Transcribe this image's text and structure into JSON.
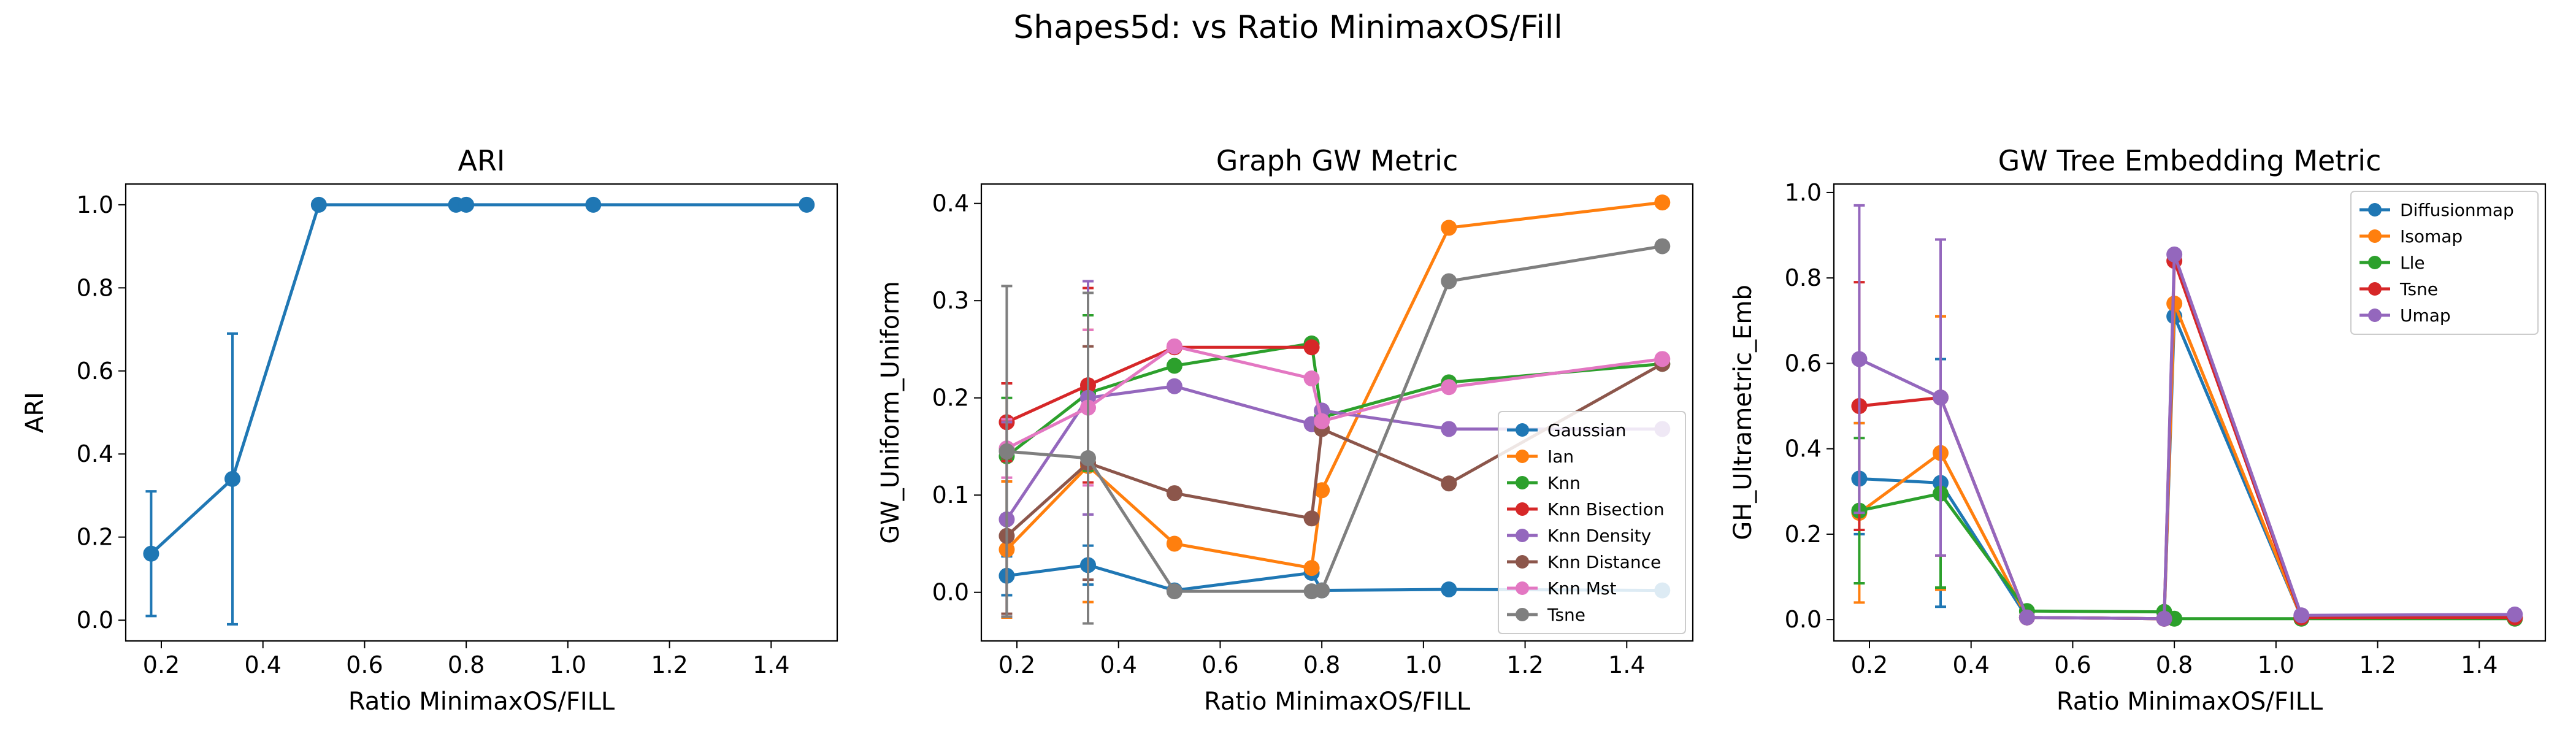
{
  "suptitle": "Shapes5d: vs Ratio MinimaxOS/Fill",
  "chart_data": [
    {
      "type": "line",
      "title": "ARI",
      "xlabel": "Ratio MinimaxOS/FILL",
      "ylabel": "ARI",
      "xlim": [
        0.13,
        1.53
      ],
      "ylim": [
        -0.05,
        1.05
      ],
      "xticks": [
        "0.2",
        "0.4",
        "0.6",
        "0.8",
        "1.0",
        "1.2",
        "1.4"
      ],
      "yticks": [
        "0.0",
        "0.2",
        "0.4",
        "0.6",
        "0.8",
        "1.0"
      ],
      "legend": "none",
      "series": [
        {
          "color": "#1f77b4",
          "x": [
            0.18,
            0.34,
            0.51,
            0.78,
            0.8,
            1.05,
            1.47
          ],
          "y": [
            0.16,
            0.34,
            1.0,
            1.0,
            1.0,
            1.0,
            1.0
          ],
          "err": [
            0.15,
            0.35,
            0,
            0,
            0,
            0,
            0
          ]
        }
      ]
    },
    {
      "type": "line",
      "title": "Graph GW Metric",
      "xlabel": "Ratio MinimaxOS/FILL",
      "ylabel": "GW_Uniform_Uniform",
      "xlim": [
        0.13,
        1.53
      ],
      "ylim": [
        -0.05,
        0.42
      ],
      "xticks": [
        "0.2",
        "0.4",
        "0.6",
        "0.8",
        "1.0",
        "1.2",
        "1.4"
      ],
      "yticks": [
        "0.0",
        "0.1",
        "0.2",
        "0.3",
        "0.4"
      ],
      "legend": "lower-right",
      "series": [
        {
          "name": "Gaussian",
          "color": "#1f77b4",
          "x": [
            0.18,
            0.34,
            0.51,
            0.78,
            0.8,
            1.05,
            1.47
          ],
          "y": [
            0.017,
            0.028,
            0.002,
            0.02,
            0.002,
            0.003,
            0.002
          ],
          "err": [
            0.02,
            0.02,
            0,
            0,
            0,
            0,
            0
          ]
        },
        {
          "name": "Ian",
          "color": "#ff7f0e",
          "x": [
            0.18,
            0.34,
            0.51,
            0.78,
            0.8,
            1.05,
            1.47
          ],
          "y": [
            0.044,
            0.13,
            0.05,
            0.025,
            0.105,
            0.375,
            0.401
          ],
          "err": [
            0.07,
            0.14,
            0,
            0,
            0,
            0,
            0
          ]
        },
        {
          "name": "Knn",
          "color": "#2ca02c",
          "x": [
            0.18,
            0.34,
            0.51,
            0.78,
            0.8,
            1.05,
            1.47
          ],
          "y": [
            0.14,
            0.205,
            0.233,
            0.256,
            0.18,
            0.216,
            0.235
          ],
          "err": [
            0.06,
            0.08,
            0,
            0,
            0,
            0,
            0
          ]
        },
        {
          "name": "Knn Bisection",
          "color": "#d62728",
          "x": [
            0.18,
            0.34,
            0.51,
            0.78
          ],
          "y": [
            0.175,
            0.213,
            0.252,
            0.252
          ],
          "err": [
            0.04,
            0.1,
            0,
            0
          ]
        },
        {
          "name": "Knn Density",
          "color": "#9467bd",
          "x": [
            0.18,
            0.34,
            0.51,
            0.78,
            0.8,
            1.05,
            1.47
          ],
          "y": [
            0.075,
            0.2,
            0.212,
            0.173,
            0.187,
            0.168,
            0.168
          ],
          "err": [
            0.1,
            0.12,
            0,
            0,
            0,
            0,
            0
          ]
        },
        {
          "name": "Knn Distance",
          "color": "#8c564b",
          "x": [
            0.18,
            0.34,
            0.51,
            0.78,
            0.8,
            1.05,
            1.47
          ],
          "y": [
            0.058,
            0.133,
            0.102,
            0.076,
            0.168,
            0.112,
            0.235
          ],
          "err": [
            0.08,
            0.12,
            0,
            0,
            0,
            0,
            0
          ]
        },
        {
          "name": "Knn Mst",
          "color": "#e377c2",
          "x": [
            0.18,
            0.34,
            0.51,
            0.78,
            0.8,
            1.05,
            1.47
          ],
          "y": [
            0.148,
            0.19,
            0.253,
            0.22,
            0.176,
            0.211,
            0.24
          ],
          "err": [
            0.03,
            0.08,
            0,
            0,
            0,
            0,
            0
          ]
        },
        {
          "name": "Tsne",
          "color": "#7f7f7f",
          "x": [
            0.18,
            0.34,
            0.51,
            0.78,
            0.8,
            1.05,
            1.47
          ],
          "y": [
            0.145,
            0.138,
            0.001,
            0.001,
            0.002,
            0.32,
            0.356
          ],
          "err": [
            0.17,
            0.17,
            0,
            0,
            0,
            0,
            0
          ]
        }
      ]
    },
    {
      "type": "line",
      "title": "GW Tree Embedding Metric",
      "xlabel": "Ratio MinimaxOS/FILL",
      "ylabel": "GH_Ultrametric_Emb",
      "xlim": [
        0.13,
        1.53
      ],
      "ylim": [
        -0.05,
        1.02
      ],
      "xticks": [
        "0.2",
        "0.4",
        "0.6",
        "0.8",
        "1.0",
        "1.2",
        "1.4"
      ],
      "yticks": [
        "0.0",
        "0.2",
        "0.4",
        "0.6",
        "0.8",
        "1.0"
      ],
      "legend": "upper-right",
      "series": [
        {
          "name": "Diffusionmap",
          "color": "#1f77b4",
          "x": [
            0.18,
            0.34,
            0.51,
            0.78,
            0.8,
            1.05,
            1.47
          ],
          "y": [
            0.33,
            0.32,
            0.005,
            0.002,
            0.71,
            0.005,
            0.005
          ],
          "err": [
            0.13,
            0.29,
            0,
            0,
            0,
            0,
            0
          ]
        },
        {
          "name": "Isomap",
          "color": "#ff7f0e",
          "x": [
            0.18,
            0.34,
            0.51,
            0.78,
            0.8,
            1.05,
            1.47
          ],
          "y": [
            0.25,
            0.39,
            0.005,
            0.002,
            0.74,
            0.005,
            0.005
          ],
          "err": [
            0.21,
            0.32,
            0,
            0,
            0,
            0,
            0
          ]
        },
        {
          "name": "Lle",
          "color": "#2ca02c",
          "x": [
            0.18,
            0.34,
            0.51,
            0.78,
            0.8,
            1.05,
            1.47
          ],
          "y": [
            0.255,
            0.295,
            0.02,
            0.018,
            0.002,
            0.002,
            0.002
          ],
          "err": [
            0.17,
            0.22,
            0,
            0,
            0,
            0,
            0
          ]
        },
        {
          "name": "Tsne",
          "color": "#d62728",
          "x": [
            0.18,
            0.34,
            0.51,
            0.78,
            0.8,
            1.05,
            1.47
          ],
          "y": [
            0.5,
            0.52,
            0.005,
            0.002,
            0.84,
            0.005,
            0.005
          ],
          "err": [
            0.29,
            0.37,
            0,
            0,
            0,
            0,
            0
          ]
        },
        {
          "name": "Umap",
          "color": "#9467bd",
          "x": [
            0.18,
            0.34,
            0.51,
            0.78,
            0.8,
            1.05,
            1.47
          ],
          "y": [
            0.61,
            0.52,
            0.005,
            0.002,
            0.855,
            0.01,
            0.012
          ],
          "err": [
            0.36,
            0.37,
            0,
            0,
            0,
            0,
            0
          ]
        }
      ]
    }
  ]
}
